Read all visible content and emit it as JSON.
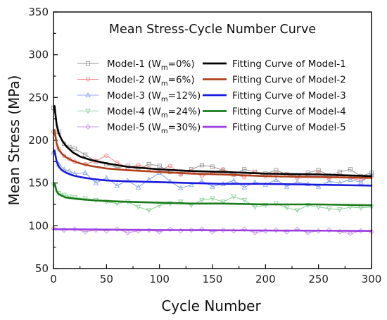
{
  "chart_data": {
    "type": "line",
    "title": "Mean Stress-Cycle Number Curve",
    "xlabel": "Cycle Number",
    "ylabel": "Mean Stress (MPa)",
    "xlim": [
      0,
      300
    ],
    "ylim": [
      50,
      350
    ],
    "xticks": [
      0,
      50,
      100,
      150,
      200,
      250,
      300
    ],
    "yticks": [
      50,
      100,
      150,
      200,
      250,
      300,
      350
    ],
    "grid": false,
    "legend_position": "top-center",
    "series": [
      {
        "name": "Model-1 (W",
        "name_sub": "m",
        "name_suffix": "=0%)",
        "kind": "measured",
        "marker": "square",
        "color": "#9a9a9a",
        "x": [
          0,
          5,
          10,
          15,
          20,
          30,
          40,
          50,
          60,
          70,
          80,
          90,
          100,
          110,
          120,
          130,
          140,
          150,
          160,
          170,
          180,
          190,
          200,
          210,
          220,
          230,
          240,
          250,
          260,
          270,
          280,
          290,
          300
        ],
        "y": [
          238,
          210,
          196,
          192,
          190,
          183,
          175,
          172,
          168,
          170,
          166,
          172,
          170,
          163,
          161,
          166,
          171,
          169,
          165,
          160,
          166,
          163,
          161,
          165,
          160,
          158,
          162,
          165,
          159,
          163,
          166,
          158,
          162
        ]
      },
      {
        "name": "Model-2 (W",
        "name_sub": "m",
        "name_suffix": "=6%)",
        "kind": "measured",
        "marker": "circle",
        "color": "#ef8a8a",
        "x": [
          0,
          5,
          10,
          15,
          20,
          30,
          40,
          50,
          60,
          70,
          80,
          90,
          100,
          110,
          120,
          130,
          140,
          150,
          160,
          170,
          180,
          190,
          200,
          210,
          220,
          230,
          240,
          250,
          260,
          270,
          280,
          290,
          300
        ],
        "y": [
          210,
          190,
          182,
          178,
          175,
          172,
          176,
          182,
          174,
          168,
          171,
          167,
          165,
          170,
          160,
          164,
          158,
          162,
          166,
          160,
          157,
          163,
          158,
          161,
          160,
          156,
          159,
          162,
          155,
          159,
          156,
          153,
          158
        ]
      },
      {
        "name": "Model-3 (W",
        "name_sub": "m",
        "name_suffix": "=12%)",
        "kind": "measured",
        "marker": "triangle",
        "color": "#8fa8ee",
        "x": [
          0,
          5,
          10,
          15,
          20,
          30,
          40,
          50,
          60,
          70,
          80,
          90,
          100,
          110,
          120,
          130,
          140,
          150,
          160,
          170,
          180,
          190,
          200,
          210,
          220,
          230,
          240,
          250,
          260,
          270,
          280,
          290,
          300
        ],
        "y": [
          186,
          172,
          166,
          164,
          161,
          162,
          150,
          156,
          147,
          153,
          145,
          154,
          162,
          152,
          144,
          148,
          152,
          146,
          149,
          153,
          145,
          151,
          148,
          154,
          146,
          151,
          149,
          146,
          152,
          150,
          154,
          151,
          160
        ]
      },
      {
        "name": "Model-4 (W",
        "name_sub": "m",
        "name_suffix": "=24%)",
        "kind": "measured",
        "marker": "triangle-down",
        "color": "#8fd19a",
        "x": [
          0,
          5,
          10,
          15,
          20,
          30,
          40,
          50,
          60,
          70,
          80,
          90,
          100,
          110,
          120,
          130,
          140,
          150,
          160,
          170,
          180,
          190,
          200,
          210,
          220,
          230,
          240,
          250,
          260,
          270,
          280,
          290,
          300
        ],
        "y": [
          148,
          138,
          136,
          134,
          133,
          132,
          130,
          128,
          126,
          128,
          122,
          118,
          124,
          126,
          128,
          124,
          130,
          132,
          128,
          134,
          130,
          122,
          124,
          126,
          121,
          118,
          124,
          122,
          120,
          119,
          122,
          121,
          122
        ]
      },
      {
        "name": "Model-5 (W",
        "name_sub": "m",
        "name_suffix": "=30%)",
        "kind": "measured",
        "marker": "diamond",
        "color": "#c99be8",
        "x": [
          0,
          10,
          20,
          30,
          40,
          50,
          60,
          70,
          80,
          90,
          100,
          110,
          120,
          130,
          140,
          150,
          160,
          170,
          180,
          190,
          200,
          210,
          220,
          230,
          240,
          250,
          260,
          270,
          280,
          290,
          300
        ],
        "y": [
          97,
          95,
          96,
          93,
          95,
          94,
          96,
          92,
          94,
          95,
          93,
          96,
          94,
          95,
          96,
          93,
          95,
          94,
          96,
          92,
          94,
          95,
          93,
          96,
          92,
          94,
          95,
          93,
          91,
          94,
          93
        ]
      },
      {
        "name": "Fitting Curve of Model-1",
        "kind": "fit",
        "color": "#000000",
        "x": [
          1,
          3,
          5,
          8,
          12,
          18,
          25,
          35,
          50,
          70,
          100,
          130,
          160,
          200,
          250,
          300
        ],
        "y": [
          240,
          218,
          208,
          200,
          193,
          186,
          181,
          177,
          173,
          169,
          166,
          164,
          163,
          161,
          160,
          158
        ]
      },
      {
        "name": "Fitting Curve of Model-2",
        "kind": "fit",
        "color": "#b0401e",
        "x": [
          1,
          3,
          5,
          8,
          12,
          18,
          25,
          35,
          50,
          70,
          100,
          130,
          160,
          200,
          250,
          300
        ],
        "y": [
          212,
          196,
          189,
          184,
          180,
          176,
          173,
          170,
          167,
          165,
          163,
          161,
          160,
          158,
          157,
          156
        ]
      },
      {
        "name": "Fitting Curve of Model-3",
        "kind": "fit",
        "color": "#1b1be0",
        "x": [
          1,
          3,
          5,
          8,
          12,
          18,
          25,
          35,
          50,
          70,
          100,
          130,
          160,
          200,
          250,
          300
        ],
        "y": [
          188,
          175,
          169,
          165,
          162,
          159,
          157,
          155,
          153,
          152,
          151,
          150,
          149,
          149,
          148,
          147
        ]
      },
      {
        "name": "Fitting Curve of Model-4",
        "kind": "fit",
        "color": "#1a7a1a",
        "x": [
          1,
          3,
          5,
          8,
          12,
          18,
          25,
          35,
          50,
          70,
          100,
          130,
          160,
          200,
          250,
          300
        ],
        "y": [
          150,
          140,
          137,
          135,
          133,
          132,
          131,
          130,
          129,
          128,
          127,
          126,
          126,
          125,
          125,
          124
        ]
      },
      {
        "name": "Fitting Curve of Model-5",
        "kind": "fit",
        "color": "#9b3fe0",
        "x": [
          0,
          50,
          100,
          150,
          200,
          250,
          300
        ],
        "y": [
          96,
          95.5,
          95,
          94.8,
          94.5,
          94.3,
          94
        ]
      }
    ]
  }
}
